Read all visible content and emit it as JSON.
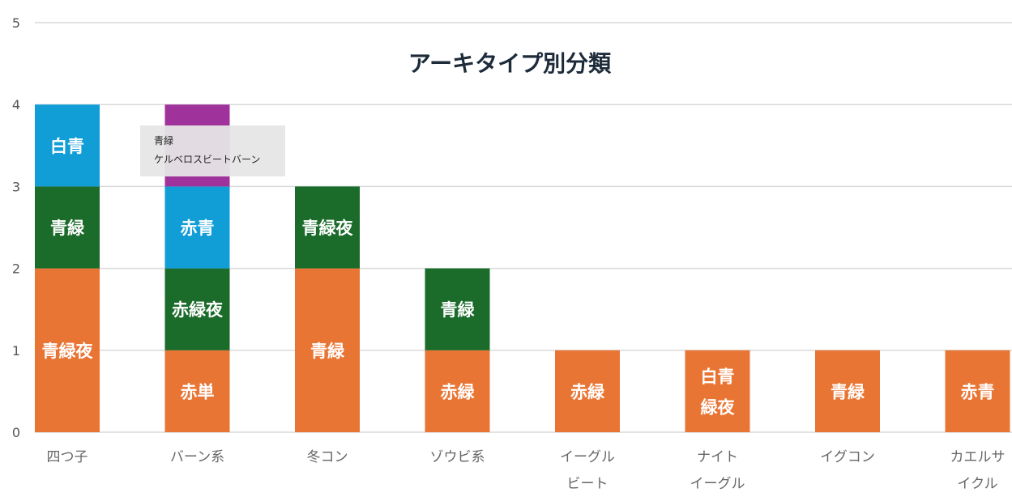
{
  "chart_data": {
    "type": "bar",
    "stacked": true,
    "title": "アーキタイプ別分類",
    "ylim": [
      0,
      5
    ],
    "yticks": [
      "0",
      "1",
      "2",
      "3",
      "4",
      "5"
    ],
    "grid": true,
    "categories": [
      [
        "四つ子"
      ],
      [
        "バーン系"
      ],
      [
        "冬コン"
      ],
      [
        "ゾウビ系"
      ],
      [
        "イーグル",
        "ビート"
      ],
      [
        "ナイト",
        "イーグル"
      ],
      [
        "イグコン"
      ],
      [
        "カエルサ",
        "イクル"
      ]
    ],
    "stacks": [
      [
        {
          "value": 2,
          "label": [
            "青緑夜"
          ],
          "color": "#e97534"
        },
        {
          "value": 1,
          "label": [
            "青緑"
          ],
          "color": "#1b6b2a"
        },
        {
          "value": 1,
          "label": [
            "白青"
          ],
          "color": "#119dd6"
        }
      ],
      [
        {
          "value": 1,
          "label": [
            "赤単"
          ],
          "color": "#e97534"
        },
        {
          "value": 1,
          "label": [
            "赤緑夜"
          ],
          "color": "#1b6b2a"
        },
        {
          "value": 1,
          "label": [
            "赤青"
          ],
          "color": "#119dd6"
        },
        {
          "value": 1,
          "label": [],
          "color": "#a0329c"
        }
      ],
      [
        {
          "value": 2,
          "label": [
            "青緑"
          ],
          "color": "#e97534"
        },
        {
          "value": 1,
          "label": [
            "青緑夜"
          ],
          "color": "#1b6b2a"
        }
      ],
      [
        {
          "value": 1,
          "label": [
            "赤緑"
          ],
          "color": "#e97534"
        },
        {
          "value": 1,
          "label": [
            "青緑"
          ],
          "color": "#1b6b2a"
        }
      ],
      [
        {
          "value": 1,
          "label": [
            "赤緑"
          ],
          "color": "#e97534"
        }
      ],
      [
        {
          "value": 1,
          "label": [
            "白青",
            "緑夜"
          ],
          "color": "#e97534"
        }
      ],
      [
        {
          "value": 1,
          "label": [
            "青緑"
          ],
          "color": "#e97534"
        }
      ],
      [
        {
          "value": 1,
          "label": [
            "赤青"
          ],
          "color": "#e97534"
        }
      ]
    ],
    "tooltip": {
      "lines": [
        "青緑",
        "ケルベロスビートバーン"
      ]
    }
  }
}
